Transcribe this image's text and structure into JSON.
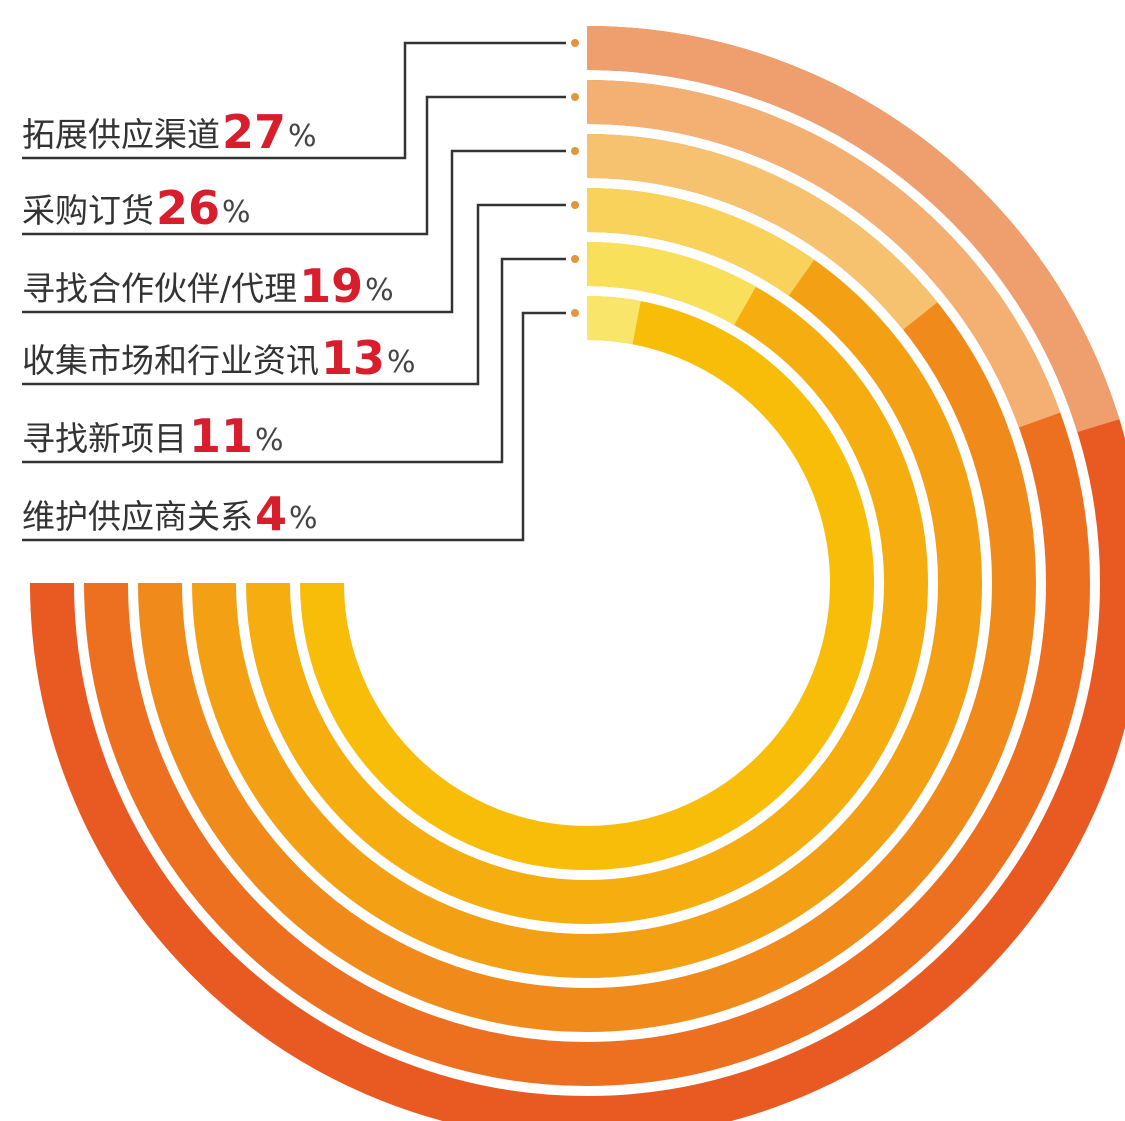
{
  "chart_data": {
    "type": "radial-bar",
    "title": "",
    "unit": "%",
    "series": [
      {
        "label": "拓展供应渠道",
        "value": 27,
        "color": "#e85a22",
        "light_color": "#ef9f6e"
      },
      {
        "label": "采购订货",
        "value": 26,
        "color": "#ec7020",
        "light_color": "#f3b072"
      },
      {
        "label": "寻找合作伙伴/代理",
        "value": 19,
        "color": "#f08a1b",
        "light_color": "#f6c270"
      },
      {
        "label": "收集市场和行业资讯",
        "value": 13,
        "color": "#f4a015",
        "light_color": "#f8d25a"
      },
      {
        "label": "寻找新项目",
        "value": 11,
        "color": "#f6ad10",
        "light_color": "#f9e05a"
      },
      {
        "label": "维护供应商关系",
        "value": 4,
        "color": "#f7bd08",
        "light_color": "#f9e56a"
      }
    ],
    "value_color": "#d81e2c",
    "label_color": "#333333",
    "leader_line_color": "#333333",
    "dot_color": "#e0963a"
  }
}
